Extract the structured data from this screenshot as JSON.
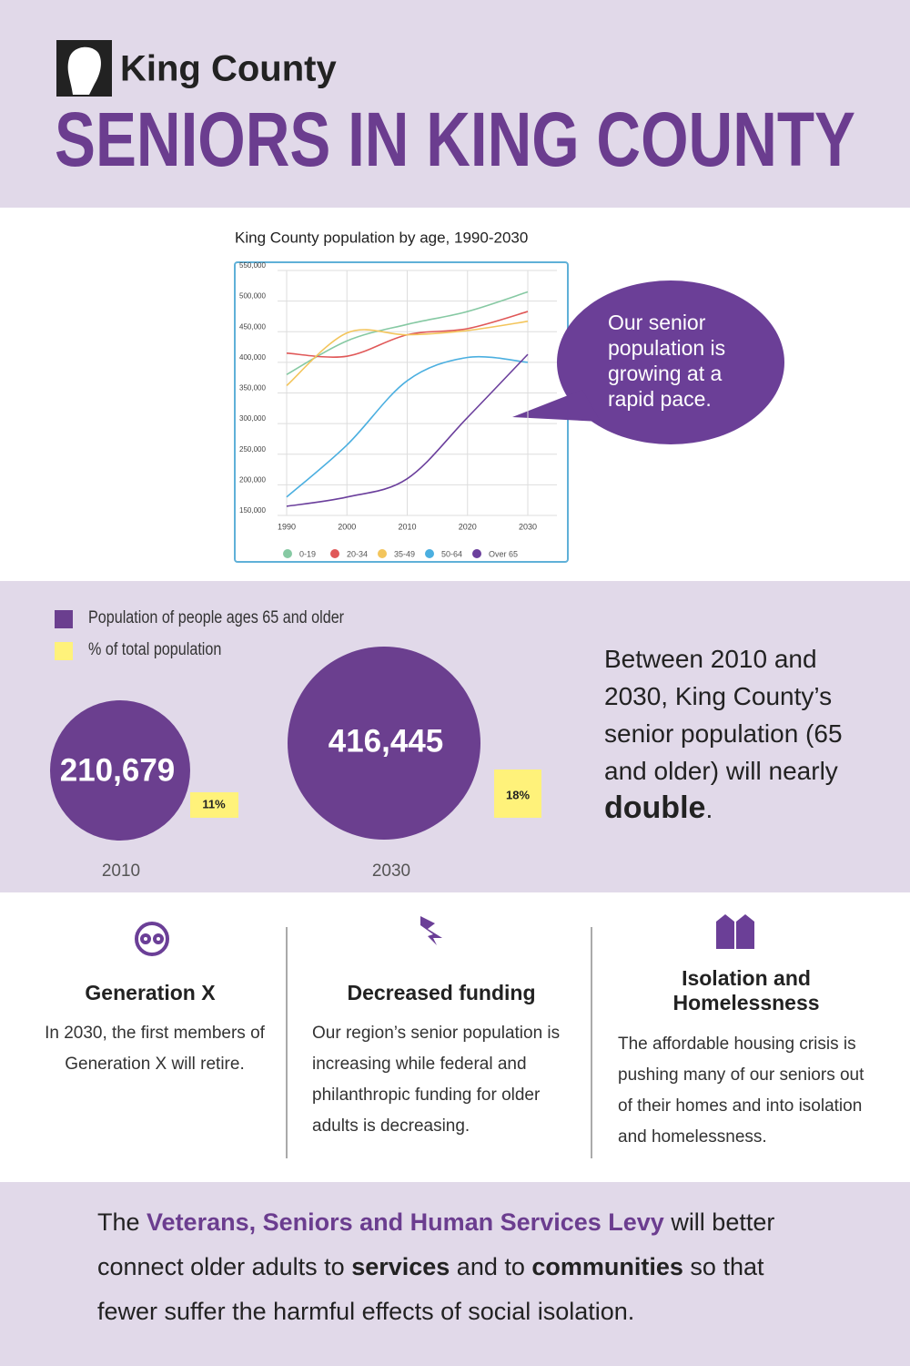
{
  "header": {
    "logo_text": "King County",
    "title": "SENIORS IN KING COUNTY"
  },
  "chart_data": {
    "type": "line",
    "title": "King County population by age, 1990-2030",
    "x": [
      1990,
      2000,
      2010,
      2020,
      2030
    ],
    "xlim": [
      1990,
      2030
    ],
    "xticks": [
      1990,
      2000,
      2010,
      2020,
      2030
    ],
    "ylim": [
      150000,
      550000
    ],
    "yticks": [
      {
        "value": 150000,
        "label": "150,000"
      },
      {
        "value": 200000,
        "label": "200,000"
      },
      {
        "value": 250000,
        "label": "250,000"
      },
      {
        "value": 300000,
        "label": "300,000"
      },
      {
        "value": 350000,
        "label": "350,000"
      },
      {
        "value": 400000,
        "label": "400,000"
      },
      {
        "value": 450000,
        "label": "450,000"
      },
      {
        "value": 500000,
        "label": "500,000"
      },
      {
        "value": 550000,
        "label": "550,000"
      }
    ],
    "grid": true,
    "series": [
      {
        "name": "0-19",
        "color": "#86c9a3",
        "values": [
          380000,
          435000,
          462000,
          483000,
          515000
        ]
      },
      {
        "name": "20-34",
        "color": "#e05858",
        "values": [
          415000,
          410000,
          445000,
          455000,
          483000
        ]
      },
      {
        "name": "35-49",
        "color": "#f3c55c",
        "values": [
          362000,
          448000,
          445000,
          452000,
          467000
        ]
      },
      {
        "name": "50-64",
        "color": "#4bafe0",
        "values": [
          180000,
          265000,
          370000,
          408000,
          400000
        ]
      },
      {
        "name": "Over 65",
        "color": "#6b3f9c",
        "values": [
          165000,
          180000,
          210000,
          310000,
          413000
        ]
      }
    ],
    "annotation": [
      "Our senior",
      "population is",
      "growing at a",
      "rapid pace."
    ]
  },
  "stats": {
    "legend": [
      "Population of people ages 65 and older",
      "% of total population"
    ],
    "items": [
      {
        "population": "210,679",
        "percent": "11%",
        "year": "2010"
      },
      {
        "population": "416,445",
        "percent": "18%",
        "year": "2030"
      }
    ],
    "summary": [
      "Between 2010 and 2030, King County’s senior population (65 and older) will nearly ",
      "double",
      "."
    ]
  },
  "columns": [
    {
      "title": "Generation X",
      "body": "In 2030, the first members of Generation X will retire."
    },
    {
      "title": "Decreased funding",
      "body": "Our region’s senior population is increasing while federal and philanthropic funding for older adults is decreasing."
    },
    {
      "title": "Isolation and Homelessness",
      "body": "The affordable housing crisis is pushing many of our seniors out of their homes and into isolation and homelessness."
    }
  ],
  "footer": [
    "The ",
    "Veterans, Seniors and Human Services Levy",
    " will better connect older adults to ",
    "services",
    " and to ",
    "communities",
    " so that fewer suffer the harmful effects of social isolation."
  ]
}
